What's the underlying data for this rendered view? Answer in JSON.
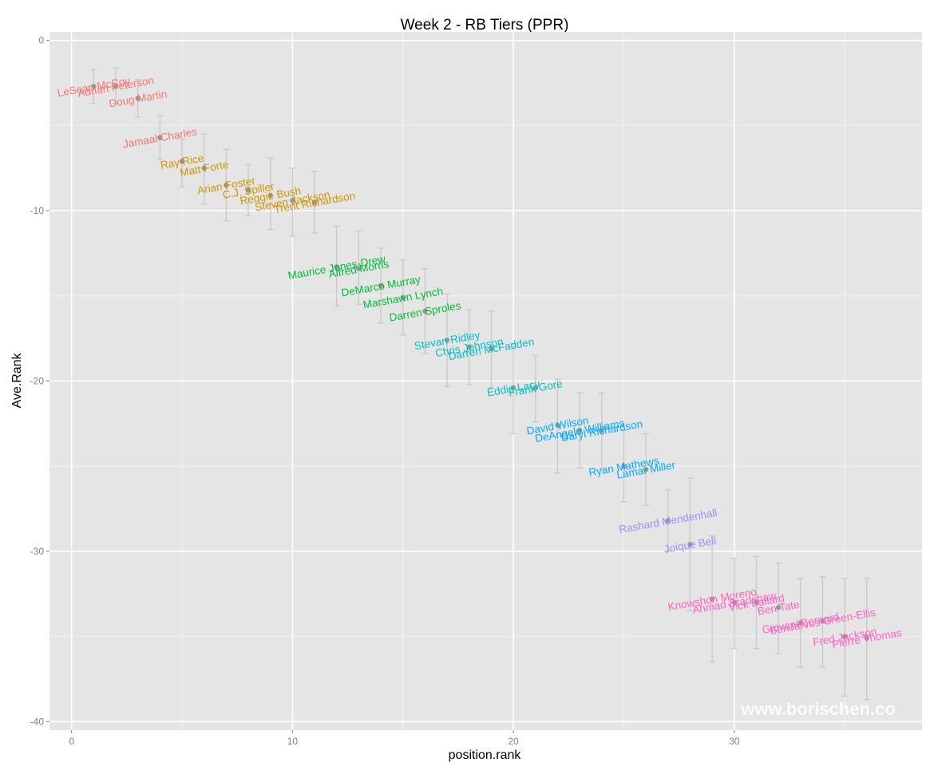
{
  "chart_data": {
    "type": "scatter",
    "title": "Week 2 - RB Tiers (PPR)",
    "xlabel": "position.rank",
    "ylabel": "Ave.Rank",
    "xlim": [
      -1,
      38.5
    ],
    "ylim": [
      -40.5,
      0.5
    ],
    "x_ticks": [
      0,
      10,
      20,
      30
    ],
    "y_ticks": [
      0,
      -10,
      -20,
      -30,
      -40
    ],
    "x_tick_labels": [
      "0",
      "10",
      "20",
      "30"
    ],
    "y_tick_labels": [
      "0",
      "-10",
      "-20",
      "-30",
      "-40"
    ],
    "grid": true,
    "legend": "none",
    "watermark": "www.borischen.co",
    "tier_colors": [
      "#F8766D",
      "#CD9600",
      "#00BA38",
      "#00BFC4",
      "#00A9FF",
      "#9590FF",
      "#FF61C3"
    ],
    "points": [
      {
        "name": "LeSean McCoy",
        "x": 1,
        "y": -2.7,
        "lo": -3.7,
        "hi": -1.7,
        "tier": 1
      },
      {
        "name": "Adrian Peterson",
        "x": 2,
        "y": -2.7,
        "lo": -3.7,
        "hi": -1.6,
        "tier": 1
      },
      {
        "name": "Doug Martin",
        "x": 3,
        "y": -3.4,
        "lo": -4.5,
        "hi": -2.3,
        "tier": 1
      },
      {
        "name": "Jamaal Charles",
        "x": 4,
        "y": -5.7,
        "lo": -7.0,
        "hi": -4.4,
        "tier": 1
      },
      {
        "name": "Ray Rice",
        "x": 5,
        "y": -7.1,
        "lo": -8.6,
        "hi": -5.8,
        "tier": 2
      },
      {
        "name": "Matt Forte",
        "x": 6,
        "y": -7.5,
        "lo": -9.6,
        "hi": -5.5,
        "tier": 2
      },
      {
        "name": "Arian Foster",
        "x": 7,
        "y": -8.5,
        "lo": -10.6,
        "hi": -6.4,
        "tier": 2
      },
      {
        "name": "C.J. Spiller",
        "x": 8,
        "y": -8.8,
        "lo": -10.3,
        "hi": -7.3,
        "tier": 2
      },
      {
        "name": "Reggie Bush",
        "x": 9,
        "y": -9.1,
        "lo": -11.1,
        "hi": -6.9,
        "tier": 2
      },
      {
        "name": "Steven Jackson",
        "x": 10,
        "y": -9.4,
        "lo": -11.5,
        "hi": -7.5,
        "tier": 2
      },
      {
        "name": "Trent Richardson",
        "x": 11,
        "y": -9.5,
        "lo": -11.3,
        "hi": -7.7,
        "tier": 2
      },
      {
        "name": "Maurice Jones-Drew",
        "x": 12,
        "y": -13.3,
        "lo": -15.6,
        "hi": -10.9,
        "tier": 3
      },
      {
        "name": "Alfred Morris",
        "x": 13,
        "y": -13.4,
        "lo": -15.5,
        "hi": -11.2,
        "tier": 3
      },
      {
        "name": "DeMarco Murray",
        "x": 14,
        "y": -14.4,
        "lo": -16.6,
        "hi": -12.2,
        "tier": 3
      },
      {
        "name": "Marshawn Lynch",
        "x": 15,
        "y": -15.1,
        "lo": -17.3,
        "hi": -12.9,
        "tier": 3
      },
      {
        "name": "Darren Sproles",
        "x": 16,
        "y": -15.9,
        "lo": -18.4,
        "hi": -13.4,
        "tier": 3
      },
      {
        "name": "Stevan Ridley",
        "x": 17,
        "y": -17.6,
        "lo": -20.3,
        "hi": -14.9,
        "tier": 4
      },
      {
        "name": "Chris Johnson",
        "x": 18,
        "y": -18.0,
        "lo": -20.2,
        "hi": -15.8,
        "tier": 4
      },
      {
        "name": "Darren McFadden",
        "x": 19,
        "y": -18.1,
        "lo": -20.4,
        "hi": -15.9,
        "tier": 4
      },
      {
        "name": "Eddie Lacy",
        "x": 20,
        "y": -20.4,
        "lo": -23.1,
        "hi": -17.8,
        "tier": 4
      },
      {
        "name": "Frank Gore",
        "x": 21,
        "y": -20.4,
        "lo": -22.4,
        "hi": -18.5,
        "tier": 4
      },
      {
        "name": "David Wilson",
        "x": 22,
        "y": -22.6,
        "lo": -25.4,
        "hi": -19.9,
        "tier": 5
      },
      {
        "name": "DeAngelo Williams",
        "x": 23,
        "y": -22.9,
        "lo": -25.1,
        "hi": -20.7,
        "tier": 5
      },
      {
        "name": "Daryl Richardson",
        "x": 24,
        "y": -22.9,
        "lo": -25.2,
        "hi": -20.7,
        "tier": 5
      },
      {
        "name": "Ryan Mathews",
        "x": 25,
        "y": -25.0,
        "lo": -27.1,
        "hi": -22.9,
        "tier": 5
      },
      {
        "name": "Lamar Miller",
        "x": 26,
        "y": -25.2,
        "lo": -27.3,
        "hi": -23.1,
        "tier": 5
      },
      {
        "name": "Rashard Mendenhall",
        "x": 27,
        "y": -28.2,
        "lo": -30.0,
        "hi": -26.4,
        "tier": 6
      },
      {
        "name": "Joique Bell",
        "x": 28,
        "y": -29.6,
        "lo": -33.5,
        "hi": -25.7,
        "tier": 6
      },
      {
        "name": "Knowshon Moreno",
        "x": 29,
        "y": -32.8,
        "lo": -36.5,
        "hi": -29.1,
        "tier": 7
      },
      {
        "name": "Ahmad Bradshaw",
        "x": 30,
        "y": -33.0,
        "lo": -35.7,
        "hi": -30.4,
        "tier": 7
      },
      {
        "name": "Vick Ballard",
        "x": 31,
        "y": -33.0,
        "lo": -35.7,
        "hi": -30.3,
        "tier": 7
      },
      {
        "name": "Ben Tate",
        "x": 32,
        "y": -33.3,
        "lo": -36.0,
        "hi": -30.7,
        "tier": 7
      },
      {
        "name": "Giovani Bernard",
        "x": 33,
        "y": -34.2,
        "lo": -36.8,
        "hi": -31.6,
        "tier": 7
      },
      {
        "name": "BenJarvus Green-Ellis",
        "x": 34,
        "y": -34.1,
        "lo": -36.8,
        "hi": -31.5,
        "tier": 7
      },
      {
        "name": "Fred Jackson",
        "x": 35,
        "y": -35.0,
        "lo": -38.5,
        "hi": -31.6,
        "tier": 7
      },
      {
        "name": "Pierre Thomas",
        "x": 36,
        "y": -35.1,
        "lo": -38.7,
        "hi": -31.6,
        "tier": 7
      }
    ]
  }
}
